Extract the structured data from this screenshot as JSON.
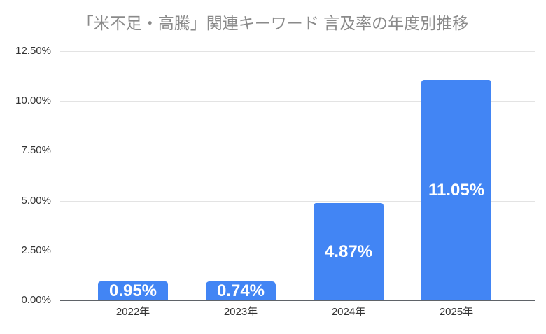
{
  "chart_data": {
    "type": "bar",
    "title": "「米不足・高騰」関連キーワード 言及率の年度別推移",
    "categories": [
      "2022年",
      "2023年",
      "2024年",
      "2025年"
    ],
    "values": [
      0.95,
      0.74,
      4.87,
      11.05
    ],
    "value_labels": [
      "0.95%",
      "0.74%",
      "4.87%",
      "11.05%"
    ],
    "yticks": [
      {
        "label": "0.00%",
        "value": 0
      },
      {
        "label": "2.50%",
        "value": 2.5
      },
      {
        "label": "5.00%",
        "value": 5
      },
      {
        "label": "7.50%",
        "value": 7.5
      },
      {
        "label": "10.00%",
        "value": 10
      },
      {
        "label": "12.50%",
        "value": 12.5
      }
    ],
    "ylim": [
      0,
      12.5
    ],
    "xlabel": "",
    "ylabel": "",
    "grid": true,
    "legend": "none",
    "colors": {
      "bar": "#4285F4",
      "title": "#8a8a8a",
      "axis_label": "#333333",
      "gridline": "#e3e3e3",
      "baseline": "#5f6368",
      "value_label_text": "#ffffff",
      "background": "#ffffff"
    }
  }
}
